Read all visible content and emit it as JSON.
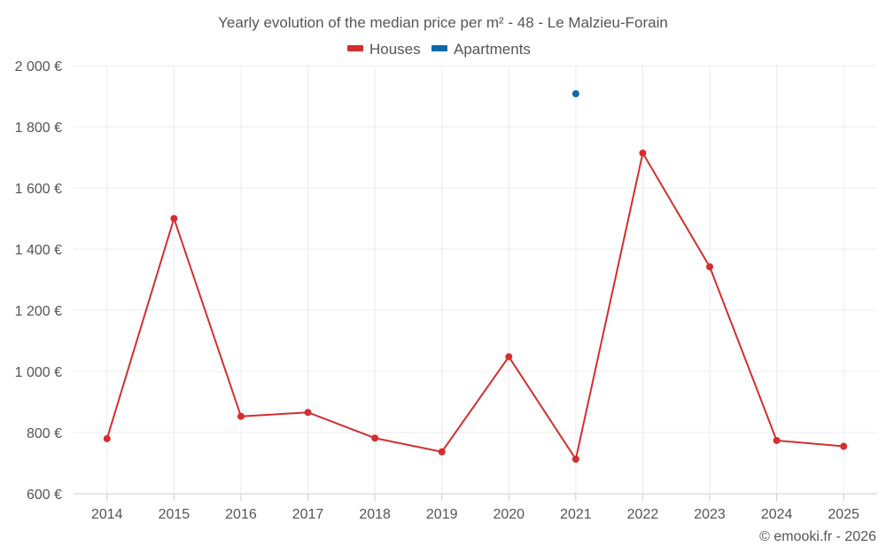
{
  "chart_data": {
    "type": "line",
    "title": "Yearly evolution of the median price per m² - 48 - Le Malzieu-Forain",
    "categories": [
      "2014",
      "2015",
      "2016",
      "2017",
      "2018",
      "2019",
      "2020",
      "2021",
      "2022",
      "2023",
      "2024",
      "2025"
    ],
    "series": [
      {
        "name": "Houses",
        "color": "#d32f2f",
        "values": [
          780,
          1500,
          853,
          866,
          782,
          737,
          1048,
          713,
          1714,
          1342,
          774,
          755
        ]
      },
      {
        "name": "Apartments",
        "color": "#0d6aa8",
        "values": [
          null,
          null,
          null,
          null,
          null,
          null,
          null,
          1908,
          null,
          null,
          null,
          null
        ]
      }
    ],
    "yticks": [
      600,
      800,
      1000,
      1200,
      1400,
      1600,
      1800,
      2000
    ],
    "ytick_labels": [
      "600 €",
      "800 €",
      "1 000 €",
      "1 200 €",
      "1 400 €",
      "1 600 €",
      "1 800 €",
      "2 000 €"
    ],
    "ylim": [
      600,
      2000
    ],
    "xlabel": "",
    "ylabel": "",
    "grid": true,
    "legend_position": "top-center",
    "credit": "© emooki.fr - 2026"
  }
}
